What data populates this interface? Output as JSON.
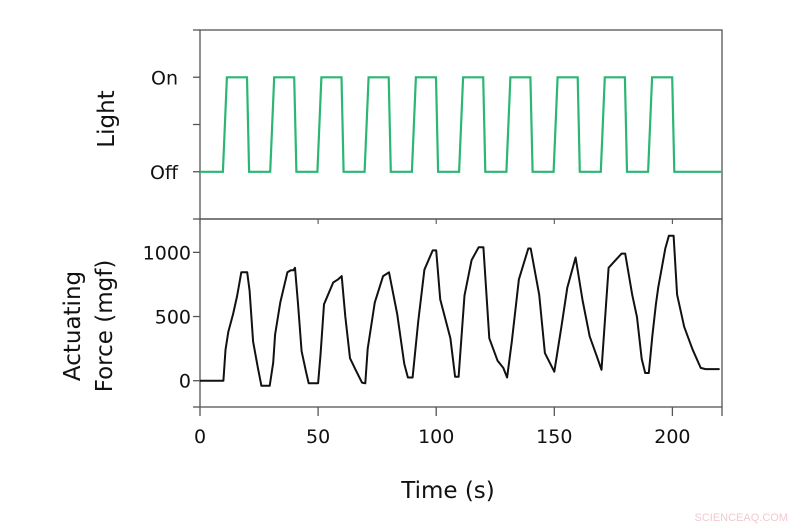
{
  "colors": {
    "axis": "#555555",
    "light_trace": "#2bb673",
    "force_trace": "#111111",
    "watermark": "#f2c9d0"
  },
  "watermark": "SCIENCEAQ.COM",
  "chart_data": [
    {
      "type": "line",
      "panel": "top",
      "title": "",
      "xlabel": "",
      "ylabel": "Light",
      "xlim": [
        0,
        221
      ],
      "ylim": [
        -0.5,
        1.5
      ],
      "grid": false,
      "yticks": [
        {
          "value": 0,
          "label": "Off"
        },
        {
          "value": 0.5,
          "label": ""
        },
        {
          "value": 1,
          "label": "On"
        }
      ],
      "series": [
        {
          "name": "Light",
          "color": "#2bb673",
          "x": [
            0,
            9.7,
            11.4,
            19.9,
            20.8,
            29.7,
            31.4,
            39.9,
            40.8,
            49.7,
            51.4,
            59.9,
            60.8,
            69.7,
            71.4,
            79.9,
            80.8,
            89.7,
            91.4,
            99.9,
            100.8,
            109.7,
            111.4,
            119.9,
            120.8,
            129.7,
            131.4,
            139.9,
            140.8,
            149.7,
            151.4,
            159.9,
            160.8,
            169.7,
            171.4,
            179.9,
            180.8,
            189.7,
            191.4,
            199.9,
            200.8,
            221
          ],
          "y": [
            0,
            0,
            1,
            1,
            0,
            0,
            1,
            1,
            0,
            0,
            1,
            1,
            0,
            0,
            1,
            1,
            0,
            0,
            1,
            1,
            0,
            0,
            1,
            1,
            0,
            0,
            1,
            1,
            0,
            0,
            1,
            1,
            0,
            0,
            1,
            1,
            0,
            0,
            1,
            1,
            0,
            0
          ]
        }
      ]
    },
    {
      "type": "line",
      "panel": "bottom",
      "title": "",
      "xlabel": "Time (s)",
      "ylabel": "Actuating Force (mgf)",
      "ylabel_lines": [
        "Actuating",
        "Force (mgf)"
      ],
      "xlim": [
        0,
        221
      ],
      "ylim": [
        -205,
        1260
      ],
      "grid": false,
      "xticks": [
        {
          "value": 0,
          "label": "0"
        },
        {
          "value": 50,
          "label": "50"
        },
        {
          "value": 100,
          "label": "100"
        },
        {
          "value": 150,
          "label": "150"
        },
        {
          "value": 200,
          "label": "200"
        },
        {
          "value": 221,
          "label": ""
        }
      ],
      "yticks": [
        {
          "value": 0,
          "label": "0"
        },
        {
          "value": 500,
          "label": "500"
        },
        {
          "value": 1000,
          "label": "1000"
        }
      ],
      "series": [
        {
          "name": "Actuating Force",
          "color": "#111111",
          "x": [
            0,
            9.9,
            10.8,
            12,
            14,
            15.7,
            17.5,
            20,
            21,
            22.5,
            24.5,
            26,
            29.5,
            31,
            31.8,
            34,
            37,
            38.5,
            39.5,
            40.2,
            41.5,
            43,
            45,
            46,
            50,
            51,
            52.5,
            56.4,
            58.5,
            60,
            61.5,
            63.5,
            66,
            68.6,
            70,
            71,
            74,
            77.5,
            80,
            83.5,
            86.5,
            88,
            90,
            92.4,
            95,
            98.5,
            100,
            101.7,
            106,
            108,
            109.5,
            112,
            115,
            118,
            120,
            122.5,
            126,
            128.4,
            130,
            132,
            135,
            139,
            140,
            143.6,
            146,
            150,
            153,
            155.5,
            159,
            162,
            165,
            168,
            170,
            173,
            175.5,
            178.5,
            180,
            183,
            185,
            187,
            188.5,
            190,
            191.5,
            193,
            194,
            197,
            198.5,
            200.5,
            202,
            205,
            208.5,
            212,
            214,
            220
          ],
          "y": [
            0,
            0,
            240,
            380,
            520,
            660,
            845,
            845,
            700,
            305,
            100,
            -40,
            -40,
            140,
            360,
            610,
            845,
            860,
            860,
            880,
            600,
            230,
            60,
            -20,
            -20,
            200,
            595,
            765,
            790,
            815,
            500,
            175,
            80,
            -15,
            -20,
            250,
            610,
            815,
            845,
            520,
            130,
            25,
            25,
            460,
            865,
            1015,
            1015,
            635,
            330,
            30,
            30,
            665,
            940,
            1040,
            1040,
            330,
            155,
            100,
            25,
            305,
            790,
            1030,
            1030,
            670,
            215,
            70,
            420,
            725,
            960,
            625,
            345,
            190,
            85,
            880,
            930,
            990,
            990,
            670,
            495,
            170,
            60,
            60,
            345,
            595,
            725,
            1030,
            1130,
            1130,
            670,
            420,
            245,
            100,
            90,
            90
          ]
        }
      ]
    }
  ]
}
